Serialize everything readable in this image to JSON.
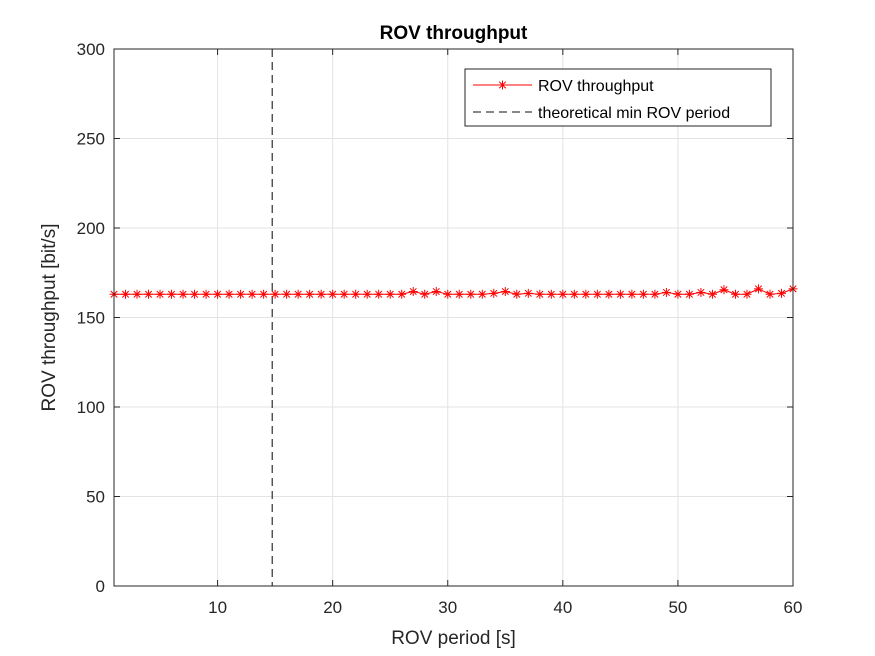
{
  "chart_data": {
    "type": "line",
    "title": "ROV throughput",
    "xlabel": "ROV period [s]",
    "ylabel": "ROV throughput [bit/s]",
    "xlim": [
      1,
      60
    ],
    "ylim": [
      0,
      300
    ],
    "xticks": [
      10,
      20,
      30,
      40,
      50,
      60
    ],
    "yticks": [
      0,
      50,
      100,
      150,
      200,
      250,
      300
    ],
    "grid": true,
    "legend_location": "top-right",
    "series": [
      {
        "name": "ROV throughput",
        "color": "#ff0000",
        "marker": "asterisk",
        "x": [
          1,
          2,
          3,
          4,
          5,
          6,
          7,
          8,
          9,
          10,
          11,
          12,
          13,
          14,
          15,
          16,
          17,
          18,
          19,
          20,
          21,
          22,
          23,
          24,
          25,
          26,
          27,
          28,
          29,
          30,
          31,
          32,
          33,
          34,
          35,
          36,
          37,
          38,
          39,
          40,
          41,
          42,
          43,
          44,
          45,
          46,
          47,
          48,
          49,
          50,
          51,
          52,
          53,
          54,
          55,
          56,
          57,
          58,
          59,
          60
        ],
        "y": [
          163,
          163,
          163,
          163,
          163,
          163,
          163,
          163,
          163,
          163,
          163,
          163,
          163,
          163,
          163,
          163,
          163,
          163,
          163,
          163,
          163,
          163,
          163,
          163,
          163,
          163,
          164.5,
          163,
          164.5,
          163,
          163,
          163,
          163,
          163.5,
          164.5,
          163,
          163.5,
          163,
          163,
          163,
          163,
          163,
          163,
          163,
          163,
          163,
          163,
          163,
          164,
          163,
          163,
          164,
          163,
          165.5,
          163,
          163,
          166,
          163,
          163.5,
          166
        ]
      },
      {
        "name": "theoretical min ROV period",
        "color": "#404040",
        "style": "dashed",
        "x_value": 14.75
      }
    ]
  }
}
